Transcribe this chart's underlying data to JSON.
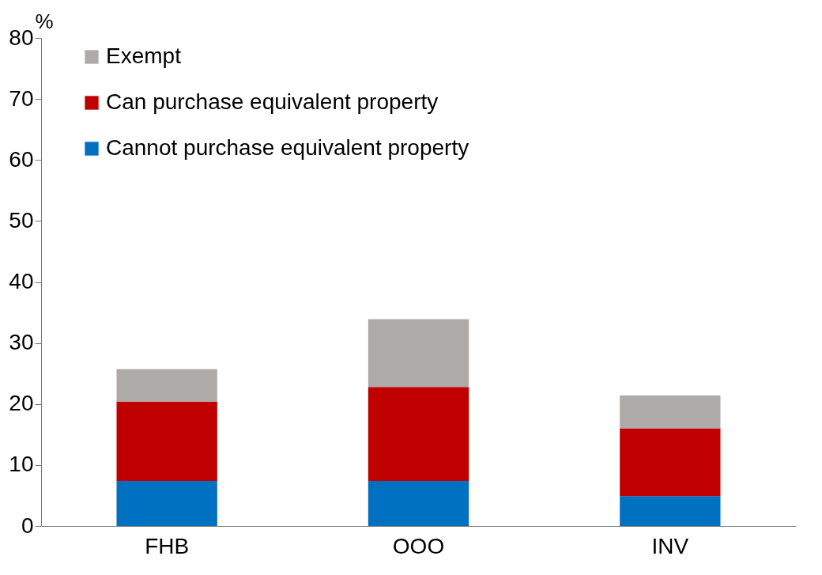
{
  "chart_data": {
    "type": "bar",
    "ylabel": "%",
    "categories": [
      "FHB",
      "OOO",
      "INV"
    ],
    "stacked": true,
    "legend": "top left",
    "grid": false,
    "ylim": [
      0,
      80
    ],
    "yticks": [
      0,
      10,
      20,
      30,
      40,
      50,
      60,
      70,
      80
    ],
    "series": [
      {
        "name": "Cannot purchase equivalent property",
        "color": "#0070c0",
        "values": [
          7.4,
          7.4,
          4.9
        ]
      },
      {
        "name": "Can purchase equivalent property",
        "color": "#c00000",
        "values": [
          13.0,
          15.4,
          11.1
        ]
      },
      {
        "name": "Exempt",
        "color": "#aeaaaa",
        "values": [
          5.3,
          11.1,
          5.4
        ]
      }
    ]
  }
}
